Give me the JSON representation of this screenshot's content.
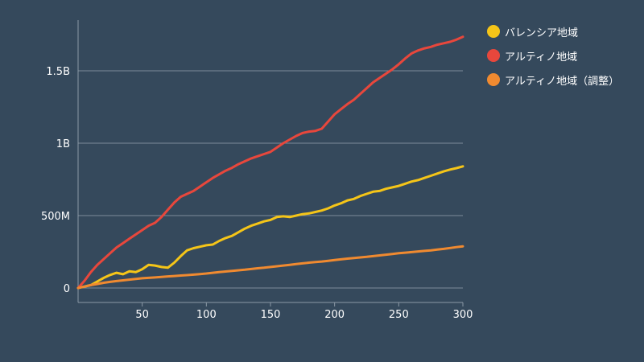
{
  "chart_data": {
    "type": "line",
    "title": "",
    "xlabel": "",
    "ylabel": "",
    "xlim": [
      0,
      300
    ],
    "ylim": [
      -100000000,
      1850000000
    ],
    "x_ticks": [
      50,
      100,
      150,
      200,
      250,
      300
    ],
    "x_tick_labels": [
      "50",
      "100",
      "150",
      "200",
      "250",
      "300"
    ],
    "y_ticks": [
      0,
      500000000,
      1000000000,
      1500000000
    ],
    "y_tick_labels": [
      "0",
      "500M",
      "1B",
      "1.5B"
    ],
    "grid": "horizontal",
    "legend_position": "right",
    "series": [
      {
        "name": "バレンシア地域",
        "color": "#f5c518",
        "x": [
          0,
          5,
          10,
          15,
          20,
          25,
          30,
          35,
          40,
          45,
          50,
          55,
          60,
          65,
          70,
          75,
          80,
          85,
          90,
          95,
          100,
          105,
          110,
          115,
          120,
          125,
          130,
          135,
          140,
          145,
          150,
          155,
          160,
          165,
          170,
          175,
          180,
          185,
          190,
          195,
          200,
          205,
          210,
          215,
          220,
          225,
          230,
          235,
          240,
          245,
          250,
          255,
          260,
          265,
          270,
          275,
          280,
          285,
          290,
          295,
          300
        ],
        "values": [
          0,
          10000000,
          20000000,
          45000000,
          70000000,
          90000000,
          105000000,
          95000000,
          115000000,
          110000000,
          130000000,
          160000000,
          155000000,
          145000000,
          140000000,
          175000000,
          220000000,
          260000000,
          275000000,
          285000000,
          295000000,
          300000000,
          325000000,
          345000000,
          360000000,
          385000000,
          410000000,
          430000000,
          445000000,
          460000000,
          470000000,
          490000000,
          495000000,
          490000000,
          500000000,
          510000000,
          515000000,
          525000000,
          535000000,
          550000000,
          570000000,
          585000000,
          605000000,
          615000000,
          635000000,
          650000000,
          665000000,
          670000000,
          685000000,
          695000000,
          705000000,
          720000000,
          735000000,
          745000000,
          760000000,
          775000000,
          790000000,
          805000000,
          818000000,
          828000000,
          840000000
        ]
      },
      {
        "name": "アルティノ地域",
        "color": "#e8473c",
        "x": [
          0,
          5,
          10,
          15,
          20,
          25,
          30,
          35,
          40,
          45,
          50,
          55,
          60,
          65,
          70,
          75,
          80,
          85,
          90,
          95,
          100,
          105,
          110,
          115,
          120,
          125,
          130,
          135,
          140,
          145,
          150,
          155,
          160,
          165,
          170,
          175,
          180,
          185,
          190,
          195,
          200,
          205,
          210,
          215,
          220,
          225,
          230,
          235,
          240,
          245,
          250,
          255,
          260,
          265,
          270,
          275,
          280,
          285,
          290,
          295,
          300
        ],
        "values": [
          0,
          50000000,
          110000000,
          160000000,
          200000000,
          240000000,
          280000000,
          310000000,
          340000000,
          370000000,
          400000000,
          430000000,
          450000000,
          490000000,
          540000000,
          590000000,
          630000000,
          650000000,
          670000000,
          700000000,
          730000000,
          760000000,
          785000000,
          810000000,
          830000000,
          855000000,
          875000000,
          895000000,
          910000000,
          925000000,
          940000000,
          970000000,
          1000000000,
          1025000000,
          1050000000,
          1070000000,
          1080000000,
          1085000000,
          1100000000,
          1150000000,
          1200000000,
          1235000000,
          1270000000,
          1300000000,
          1340000000,
          1380000000,
          1420000000,
          1450000000,
          1480000000,
          1510000000,
          1545000000,
          1585000000,
          1620000000,
          1640000000,
          1655000000,
          1665000000,
          1680000000,
          1690000000,
          1700000000,
          1715000000,
          1735000000
        ]
      },
      {
        "name": "アルティノ地域（調整）",
        "color": "#f08a30",
        "x": [
          0,
          5,
          10,
          15,
          20,
          25,
          30,
          35,
          40,
          45,
          50,
          55,
          60,
          65,
          70,
          75,
          80,
          85,
          90,
          95,
          100,
          105,
          110,
          115,
          120,
          125,
          130,
          135,
          140,
          145,
          150,
          155,
          160,
          165,
          170,
          175,
          180,
          185,
          190,
          195,
          200,
          205,
          210,
          215,
          220,
          225,
          230,
          235,
          240,
          245,
          250,
          255,
          260,
          265,
          270,
          275,
          280,
          285,
          290,
          295,
          300
        ],
        "values": [
          0,
          10000000,
          20000000,
          28000000,
          36000000,
          42000000,
          48000000,
          53000000,
          58000000,
          63000000,
          67000000,
          70000000,
          73000000,
          76000000,
          80000000,
          83000000,
          86000000,
          89000000,
          92000000,
          96000000,
          100000000,
          105000000,
          110000000,
          114000000,
          118000000,
          122000000,
          126000000,
          131000000,
          136000000,
          140000000,
          145000000,
          150000000,
          155000000,
          160000000,
          165000000,
          170000000,
          175000000,
          179000000,
          183000000,
          188000000,
          193000000,
          198000000,
          203000000,
          207000000,
          211000000,
          215000000,
          220000000,
          225000000,
          230000000,
          235000000,
          240000000,
          244000000,
          248000000,
          252000000,
          256000000,
          260000000,
          265000000,
          270000000,
          276000000,
          282000000,
          288000000
        ]
      }
    ]
  }
}
